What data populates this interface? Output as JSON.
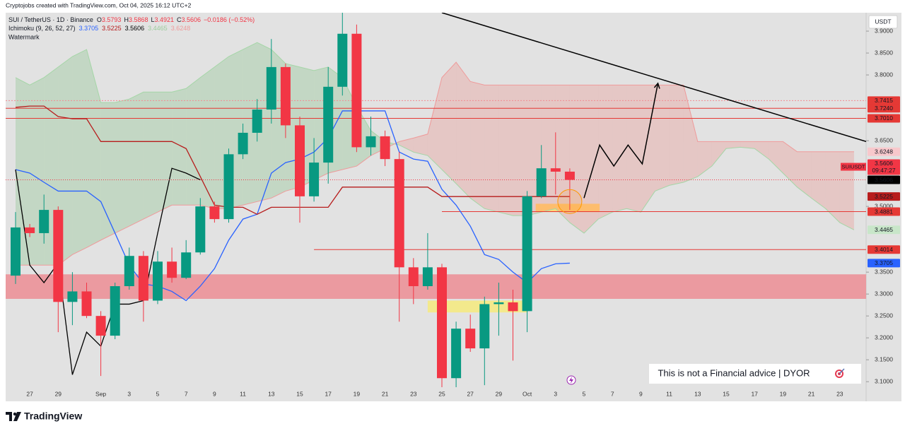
{
  "header": {
    "attribution": "Cryptojobs created with TradingView.com, Oct 04, 2025 16:12 UTC+2",
    "symbol": "SUI / TetherUS · 1D · Binance",
    "ohlc": [
      {
        "label": "O",
        "value": "3.5793"
      },
      {
        "label": "H",
        "value": "3.5868"
      },
      {
        "label": "L",
        "value": "3.4921"
      },
      {
        "label": "C",
        "value": "3.5606"
      }
    ],
    "change": "−0.0186 (−0.52%)",
    "indicator": "Ichimoku (9, 26, 52, 27)",
    "indicator_values": [
      "3.3705",
      "3.5225",
      "3.5606",
      "3.4465",
      "3.6248"
    ],
    "watermark": "Watermark"
  },
  "currency": "USDT",
  "disclaimer": "This is not a Financial advice | DYOR",
  "brand": "TradingView",
  "chart_data": {
    "type": "candlestick",
    "categories": [
      null,
      "27",
      null,
      "29",
      null,
      null,
      "Sep",
      null,
      "3",
      null,
      "5",
      null,
      "7",
      null,
      "9",
      null,
      "11",
      null,
      "13",
      null,
      "15",
      null,
      "17",
      null,
      "19",
      null,
      "21",
      null,
      "23",
      null,
      "25",
      null,
      "27",
      null,
      "29",
      null,
      "Oct",
      null,
      "3",
      null,
      "5",
      null,
      "7",
      null,
      "9",
      null,
      "11",
      null,
      "13",
      null,
      "15",
      null,
      "17",
      null,
      "19",
      null,
      "21",
      null,
      "23",
      null
    ],
    "open": [
      3.342,
      3.452,
      3.439,
      3.492,
      3.282,
      3.306,
      3.25,
      3.205,
      3.318,
      3.387,
      3.285,
      3.374,
      3.337,
      3.395,
      3.5,
      3.471,
      3.619,
      3.668,
      3.721,
      3.818,
      3.685,
      3.523,
      3.6,
      3.773,
      3.894,
      3.635,
      3.66,
      3.608,
      3.361,
      3.318,
      3.361,
      3.108,
      3.221,
      3.176,
      3.277,
      3.281,
      3.261,
      3.523,
      3.587,
      3.5793,
      null,
      null,
      null,
      null,
      null,
      null,
      null,
      null,
      null,
      null,
      null,
      null,
      null,
      null,
      null,
      null,
      null,
      null,
      null,
      null
    ],
    "high": [
      3.487,
      3.46,
      3.527,
      3.5,
      3.35,
      3.326,
      3.261,
      3.326,
      3.406,
      3.398,
      3.398,
      3.406,
      3.423,
      3.519,
      3.511,
      3.632,
      3.689,
      3.745,
      3.882,
      3.826,
      3.705,
      3.656,
      3.818,
      3.942,
      3.915,
      3.705,
      3.673,
      3.624,
      3.382,
      3.439,
      3.369,
      3.237,
      3.253,
      3.294,
      3.326,
      3.31,
      3.535,
      3.64,
      3.669,
      3.5868,
      null,
      null,
      null,
      null,
      null,
      null,
      null,
      null,
      null,
      null,
      null,
      null,
      null,
      null,
      null,
      null,
      null,
      null,
      null,
      null
    ],
    "low": [
      3.323,
      3.43,
      3.415,
      3.213,
      3.229,
      3.245,
      3.113,
      3.197,
      3.31,
      3.237,
      3.277,
      3.326,
      3.334,
      3.39,
      3.463,
      3.463,
      3.608,
      3.648,
      3.689,
      3.656,
      3.463,
      3.511,
      3.552,
      3.753,
      3.624,
      3.616,
      3.592,
      3.237,
      3.277,
      3.31,
      3.084,
      3.087,
      3.168,
      3.092,
      3.205,
      3.148,
      3.213,
      3.519,
      3.527,
      3.4921,
      null,
      null,
      null,
      null,
      null,
      null,
      null,
      null,
      null,
      null,
      null,
      null,
      null,
      null,
      null,
      null,
      null,
      null,
      null,
      null
    ],
    "close": [
      3.452,
      3.439,
      3.492,
      3.282,
      3.306,
      3.25,
      3.205,
      3.318,
      3.387,
      3.285,
      3.374,
      3.337,
      3.395,
      3.5,
      3.471,
      3.619,
      3.668,
      3.721,
      3.818,
      3.685,
      3.523,
      3.6,
      3.773,
      3.894,
      3.635,
      3.66,
      3.608,
      3.361,
      3.318,
      3.361,
      3.108,
      3.221,
      3.176,
      3.277,
      3.281,
      3.261,
      3.523,
      3.587,
      3.5793,
      3.5606,
      null,
      null,
      null,
      null,
      null,
      null,
      null,
      null,
      null,
      null,
      null,
      null,
      null,
      null,
      null,
      null,
      null,
      null,
      null,
      null
    ],
    "up_color": "#089981",
    "down_color": "#f23645",
    "ylim": [
      3.06,
      3.942
    ],
    "yticks": [
      {
        "value": 3.9,
        "label": "3.9000"
      },
      {
        "value": 3.85,
        "label": "3.8500"
      },
      {
        "value": 3.8,
        "label": "3.8000"
      },
      {
        "value": 3.65,
        "label": "3.6500"
      },
      {
        "value": 3.5,
        "label": "3.5000"
      },
      {
        "value": 3.35,
        "label": "3.3500"
      },
      {
        "value": 3.3,
        "label": "3.3000"
      },
      {
        "value": 3.25,
        "label": "3.2500"
      },
      {
        "value": 3.2,
        "label": "3.2000"
      },
      {
        "value": 3.15,
        "label": "3.1500"
      },
      {
        "value": 3.1,
        "label": "3.1000"
      }
    ],
    "cloud": {
      "span_a": {
        "color": "#a5d6a7",
        "label": 3.4465,
        "label_fill": "#c8e6c9",
        "label_text": "#1b5e20",
        "values": [
          3.794,
          3.777,
          3.794,
          3.818,
          3.842,
          3.858,
          3.737,
          3.737,
          3.745,
          3.761,
          3.761,
          3.761,
          3.769,
          3.794,
          3.818,
          3.842,
          3.858,
          3.874,
          3.858,
          3.826,
          3.818,
          3.81,
          3.818,
          3.794,
          3.729,
          3.673,
          3.648,
          3.64,
          3.624,
          3.616,
          3.584,
          3.552,
          3.519,
          3.495,
          3.487,
          3.479,
          3.479,
          3.487,
          3.495,
          3.463,
          3.439,
          3.471,
          3.487,
          3.495,
          3.487,
          3.535,
          3.548,
          3.555,
          3.568,
          3.592,
          3.632,
          3.635,
          3.632,
          3.608,
          3.576,
          3.544,
          3.519,
          3.495,
          3.463,
          3.4465
        ]
      },
      "span_b": {
        "color": "#ef9a9a",
        "label": 3.6248,
        "label_fill": "#f8c8cc",
        "label_text": "#b71c1c",
        "values": [
          3.366,
          3.366,
          3.366,
          3.366,
          3.39,
          3.406,
          3.423,
          3.439,
          3.455,
          3.471,
          3.487,
          3.503,
          3.503,
          3.503,
          3.495,
          3.495,
          3.503,
          3.511,
          3.519,
          3.535,
          3.544,
          3.56,
          3.576,
          3.584,
          3.592,
          3.616,
          3.632,
          3.648,
          3.656,
          3.665,
          3.794,
          3.829,
          3.785,
          3.777,
          3.777,
          3.777,
          3.777,
          3.777,
          3.777,
          3.777,
          3.777,
          3.777,
          3.777,
          3.777,
          3.777,
          3.777,
          3.777,
          3.777,
          3.648,
          3.648,
          3.648,
          3.648,
          3.648,
          3.648,
          3.648,
          3.6248,
          3.6248,
          3.6248,
          3.6248,
          3.6248
        ]
      },
      "up_fill": "rgba(76,175,80,0.2)",
      "down_fill": "rgba(244,67,54,0.17)"
    },
    "lines": [
      {
        "color": "#2962ff",
        "label": 3.3705,
        "label_fill": "#2962ff",
        "label_text": "#ffffff",
        "values": [
          3.584,
          3.576,
          3.555,
          3.535,
          3.535,
          3.535,
          3.511,
          3.439,
          3.366,
          3.323,
          3.318,
          3.306,
          3.285,
          3.318,
          3.358,
          3.423,
          3.471,
          3.482,
          3.576,
          3.6,
          3.608,
          3.624,
          3.656,
          3.718,
          3.718,
          3.718,
          3.718,
          3.624,
          3.608,
          3.603,
          3.539,
          3.503,
          3.455,
          3.39,
          3.379,
          3.35,
          3.326,
          3.358,
          3.369,
          3.3705,
          null,
          null,
          null,
          null,
          null,
          null,
          null,
          null,
          null,
          null,
          null,
          null,
          null,
          null,
          null,
          null,
          null,
          null,
          null,
          null
        ]
      },
      {
        "color": "#b71c1c",
        "label": 3.5225,
        "label_fill": "#b71c1c",
        "label_text": "#ffffff",
        "values": [
          3.726,
          3.729,
          3.729,
          3.705,
          3.7,
          3.7,
          3.648,
          3.648,
          3.648,
          3.648,
          3.648,
          3.648,
          3.632,
          3.568,
          3.503,
          3.498,
          3.498,
          3.482,
          3.498,
          3.498,
          3.498,
          3.498,
          3.498,
          3.544,
          3.544,
          3.544,
          3.544,
          3.544,
          3.544,
          3.544,
          3.5225,
          3.5225,
          3.5225,
          3.5225,
          3.5225,
          3.5225,
          3.5225,
          3.5225,
          3.5225,
          3.5225,
          null,
          null,
          null,
          null,
          null,
          null,
          null,
          null,
          null,
          null,
          null,
          null,
          null,
          null,
          null,
          null,
          null,
          null,
          null,
          null
        ]
      },
      {
        "color": "#000000",
        "label": 3.5606,
        "label_fill": "#000000",
        "label_text": "#ffffff",
        "values": [
          3.584,
          3.366,
          3.326,
          3.371,
          3.116,
          3.213,
          3.181,
          3.277,
          3.277,
          3.285,
          3.439,
          3.587,
          3.576,
          3.5606,
          null,
          null,
          null,
          null,
          null,
          null,
          null,
          null,
          null,
          null,
          null,
          null,
          null,
          null,
          null,
          null,
          null,
          null,
          null,
          null,
          null,
          null,
          null,
          null,
          null,
          null,
          null,
          null,
          null,
          null,
          null,
          null,
          null,
          null,
          null,
          null,
          null,
          null,
          null,
          null,
          null,
          null,
          null,
          null,
          null,
          null
        ]
      }
    ],
    "levels": [
      {
        "value": 3.7415,
        "color": "#f28b92",
        "dashed": true
      },
      {
        "value": 3.724,
        "label": "3.7240",
        "color": "#e53935"
      },
      {
        "value": 3.701,
        "label": "3.7010",
        "color": "#e53935"
      },
      {
        "value": 3.4881,
        "color": "#e53935",
        "from": 30
      },
      {
        "value": 3.4014,
        "color": "#e53935",
        "from": 21
      }
    ],
    "zones": [
      {
        "y": [
          3.289,
          3.345
        ],
        "color": "#eb9aa0"
      },
      {
        "x": [
          29,
          36
        ],
        "y": [
          3.258,
          3.285
        ],
        "color": "#f3e98c"
      },
      {
        "x": [
          36.6,
          41.1
        ],
        "y": [
          3.487,
          3.506
        ],
        "color": "#ffd77a"
      }
    ],
    "trendline": {
      "x": [
        30,
        59.85
      ],
      "y": [
        3.942,
        3.648
      ],
      "color": "#000000"
    },
    "projection": {
      "x": [
        40,
        41.1,
        42.1,
        43.1,
        44.1,
        45.2
      ],
      "y": [
        3.519,
        3.64,
        3.592,
        3.64,
        3.597,
        3.781
      ],
      "color": "#000000"
    },
    "marker": {
      "x": 39,
      "y": 3.511,
      "color": "#ff9800"
    },
    "last_price": {
      "symbol": "SUIUSDT",
      "value": 3.5606,
      "countdown": "09:47:27",
      "color": "#f23645"
    }
  }
}
